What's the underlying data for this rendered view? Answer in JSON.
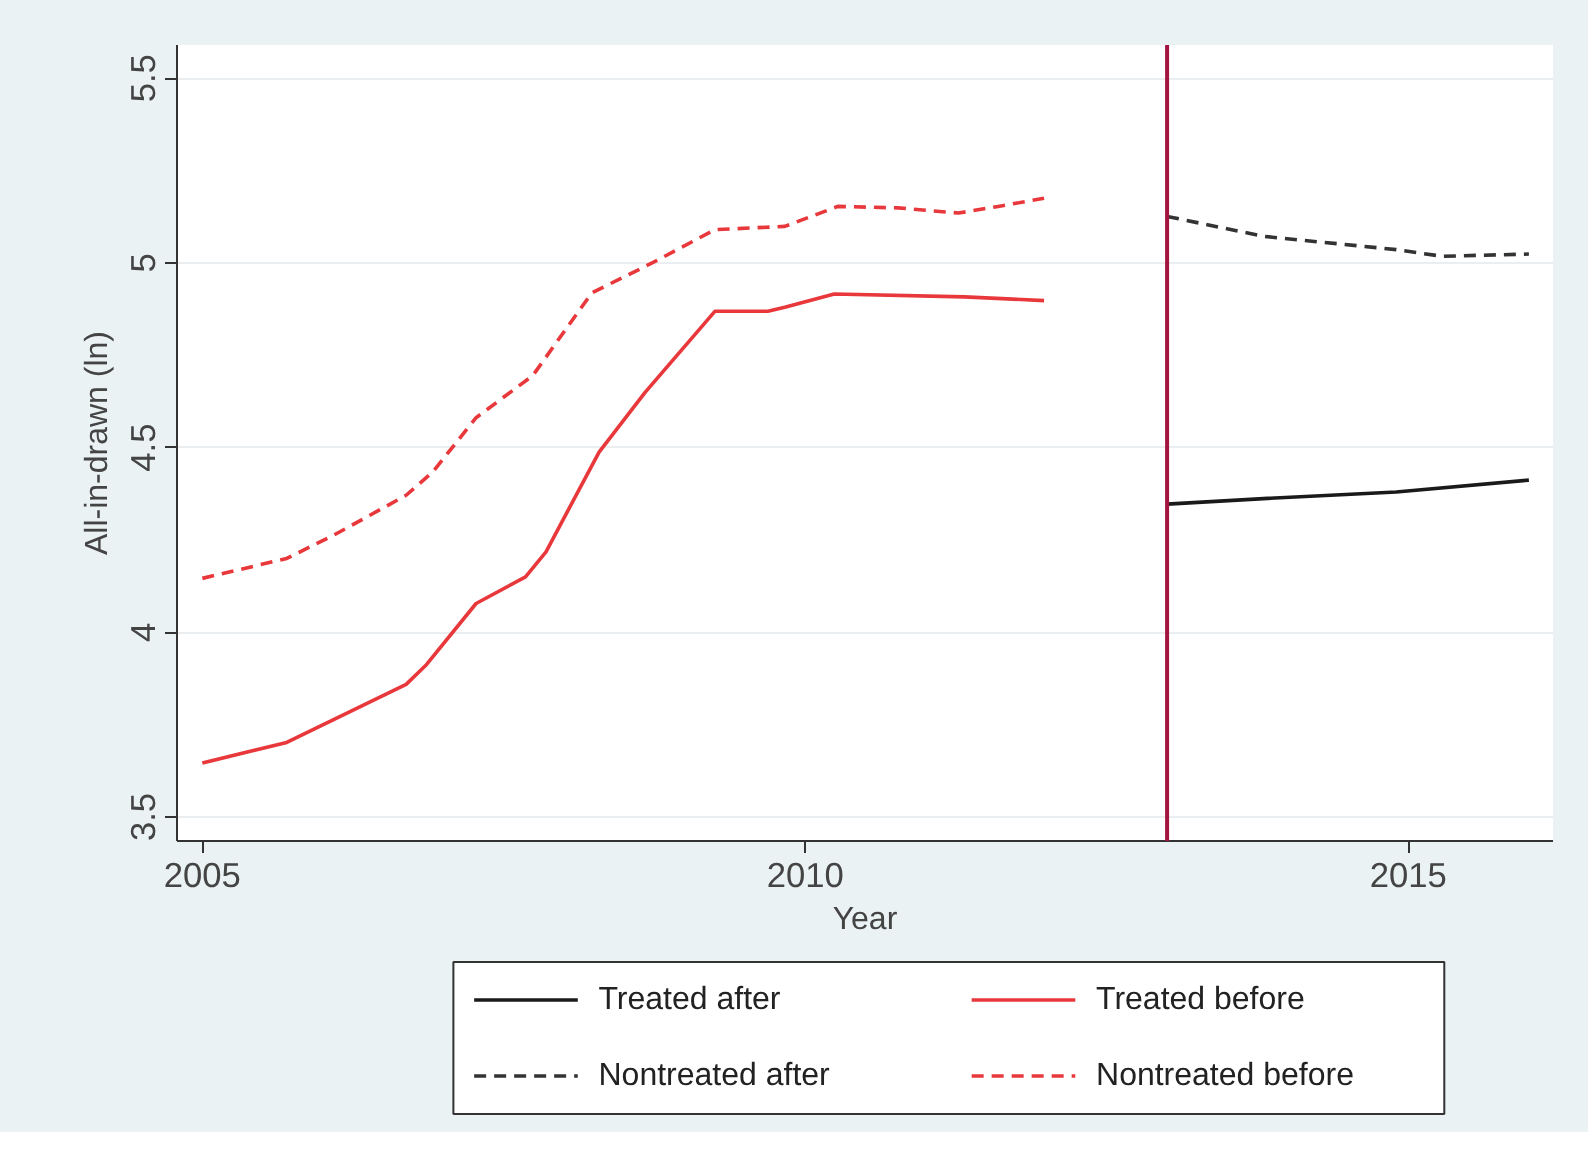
{
  "chart_data": {
    "type": "line",
    "xlabel": "Year",
    "ylabel": "All-in-drawn (ln)",
    "xlim": [
      2004.79,
      2016.2
    ],
    "ylim": [
      3.435,
      5.59
    ],
    "xticks": [
      2005,
      2010,
      2015
    ],
    "yticks": [
      {
        "value": 3.5,
        "label": "3.5"
      },
      4,
      {
        "value": 4.5,
        "label": "4.5"
      },
      5,
      {
        "value": 5.5,
        "label": "5.5"
      }
    ],
    "grid": "y",
    "legend": "bottom",
    "series": [
      {
        "name": "Treated after",
        "color": "#1a1a1a",
        "line_style": "solid",
        "x": [
          2013.0,
          2013.8,
          2014.9,
          2016.0
        ],
        "values": [
          4.347,
          4.362,
          4.38,
          4.412
        ]
      },
      {
        "name": "Treated before",
        "color": "#e8383b",
        "line_style": "solid",
        "x": [
          2005.0,
          2005.7,
          2006.69,
          2006.86,
          2007.27,
          2007.68,
          2007.85,
          2008.29,
          2008.67,
          2009.25,
          2009.69,
          2009.83,
          2010.24,
          2011.32,
          2011.98
        ],
        "values": [
          3.646,
          3.702,
          3.859,
          3.913,
          4.078,
          4.15,
          4.218,
          4.488,
          4.649,
          4.869,
          4.869,
          4.88,
          4.916,
          4.908,
          4.898
        ]
      },
      {
        "name": "Nontreated after",
        "color": "#333333",
        "line_style": "dashed",
        "x": [
          2013.0,
          2013.8,
          2014.9,
          2015.28,
          2016.0
        ],
        "values": [
          5.126,
          5.072,
          5.036,
          5.018,
          5.024
        ]
      },
      {
        "name": "Nontreated before",
        "color": "#e8383b",
        "line_style": "dashed",
        "x": [
          2005.0,
          2005.7,
          2006.09,
          2006.69,
          2006.91,
          2007.27,
          2007.74,
          2008.23,
          2008.73,
          2009.25,
          2009.83,
          2010.27,
          2010.77,
          2011.27,
          2011.6,
          2011.98
        ],
        "values": [
          4.146,
          4.2,
          4.263,
          4.371,
          4.434,
          4.581,
          4.695,
          4.919,
          5.0,
          5.09,
          5.099,
          5.153,
          5.149,
          5.135,
          5.153,
          5.175
        ]
      }
    ],
    "ref_lines": [
      {
        "axis": "x",
        "value": 2013,
        "color": "#a3153f"
      }
    ]
  }
}
